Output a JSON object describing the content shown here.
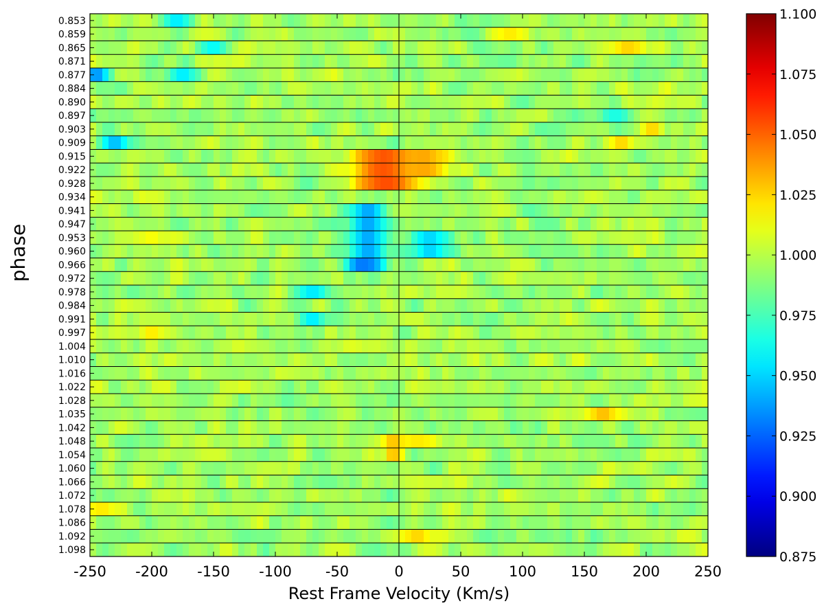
{
  "chart_data": {
    "type": "heatmap",
    "title": "",
    "xlabel": "Rest Frame Velocity (Km/s)",
    "ylabel": "phase",
    "xlim": [
      -250,
      250
    ],
    "x_ticks": [
      -250,
      -200,
      -150,
      -100,
      -50,
      0,
      50,
      100,
      150,
      200,
      250
    ],
    "x_tick_labels": [
      "-250",
      "-200",
      "-150",
      "-100",
      "-50",
      "0",
      "50",
      "100",
      "150",
      "200",
      "250"
    ],
    "phases": [
      "0.853",
      "0.859",
      "0.865",
      "0.871",
      "0.877",
      "0.884",
      "0.890",
      "0.897",
      "0.903",
      "0.909",
      "0.915",
      "0.922",
      "0.928",
      "0.934",
      "0.941",
      "0.947",
      "0.953",
      "0.960",
      "0.966",
      "0.972",
      "0.978",
      "0.984",
      "0.991",
      "0.997",
      "1.004",
      "1.010",
      "1.016",
      "1.022",
      "1.028",
      "1.035",
      "1.042",
      "1.048",
      "1.054",
      "1.060",
      "1.066",
      "1.072",
      "1.078",
      "1.086",
      "1.092",
      "1.098"
    ],
    "colormap": "jet",
    "colorbar": {
      "min": 0.875,
      "max": 1.1,
      "ticks": [
        0.875,
        0.9,
        0.925,
        0.95,
        0.975,
        1.0,
        1.025,
        1.05,
        1.075,
        1.1
      ],
      "tick_labels": [
        "0.875",
        "0.900",
        "0.925",
        "0.950",
        "0.975",
        "1.000",
        "1.025",
        "1.050",
        "1.075",
        "1.100"
      ]
    },
    "baseline": 0.995,
    "features": [
      {
        "rows": [
          10,
          11,
          12
        ],
        "x_center": -10,
        "x_width": 30,
        "value": 1.055
      },
      {
        "rows": [
          10,
          11
        ],
        "x_center": 20,
        "x_width": 20,
        "value": 1.035
      },
      {
        "rows": [
          14,
          15,
          16,
          17,
          18
        ],
        "x_center": -25,
        "x_width": 16,
        "value": 0.94
      },
      {
        "rows": [
          16,
          17
        ],
        "x_center": 25,
        "x_width": 15,
        "value": 0.95
      },
      {
        "rows": [
          18
        ],
        "x_center": -30,
        "x_width": 12,
        "value": 0.93
      },
      {
        "rows": [
          20
        ],
        "x_center": -70,
        "x_width": 15,
        "value": 0.955
      },
      {
        "rows": [
          22
        ],
        "x_center": -70,
        "x_width": 10,
        "value": 0.955
      },
      {
        "rows": [
          4
        ],
        "x_center": -245,
        "x_width": 10,
        "value": 0.935
      },
      {
        "rows": [
          4
        ],
        "x_center": -175,
        "x_width": 12,
        "value": 0.955
      },
      {
        "rows": [
          9
        ],
        "x_center": -230,
        "x_width": 14,
        "value": 0.945
      },
      {
        "rows": [
          0
        ],
        "x_center": -180,
        "x_width": 12,
        "value": 0.955
      },
      {
        "rows": [
          2
        ],
        "x_center": -150,
        "x_width": 12,
        "value": 0.96
      },
      {
        "rows": [
          2
        ],
        "x_center": 185,
        "x_width": 18,
        "value": 1.025
      },
      {
        "rows": [
          1
        ],
        "x_center": 90,
        "x_width": 15,
        "value": 1.02
      },
      {
        "rows": [
          8
        ],
        "x_center": 205,
        "x_width": 10,
        "value": 1.025
      },
      {
        "rows": [
          9
        ],
        "x_center": 180,
        "x_width": 10,
        "value": 1.025
      },
      {
        "rows": [
          29
        ],
        "x_center": 165,
        "x_width": 14,
        "value": 1.03
      },
      {
        "rows": [
          31
        ],
        "x_center": 15,
        "x_width": 22,
        "value": 1.02
      },
      {
        "rows": [
          31,
          32
        ],
        "x_center": -5,
        "x_width": 8,
        "value": 1.03
      },
      {
        "rows": [
          38
        ],
        "x_center": 15,
        "x_width": 15,
        "value": 1.025
      },
      {
        "rows": [
          36
        ],
        "x_center": -240,
        "x_width": 14,
        "value": 1.02
      },
      {
        "rows": [
          23
        ],
        "x_center": -200,
        "x_width": 12,
        "value": 1.02
      },
      {
        "rows": [
          16
        ],
        "x_center": -200,
        "x_width": 14,
        "value": 1.015
      },
      {
        "rows": [
          7
        ],
        "x_center": 175,
        "x_width": 12,
        "value": 0.965
      }
    ]
  }
}
